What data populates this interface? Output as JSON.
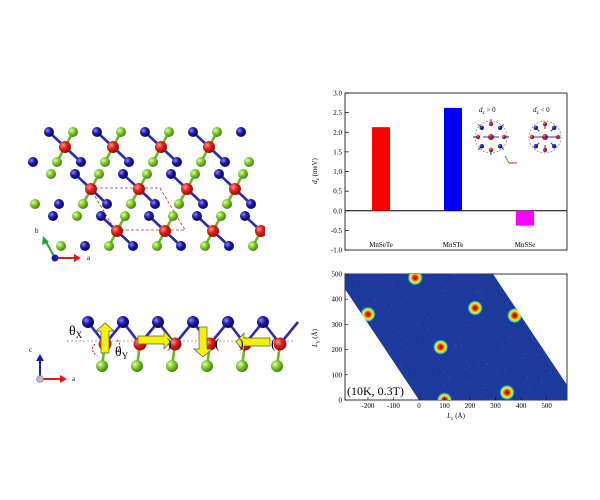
{
  "colors": {
    "mn": "#e0201c",
    "s": "#1c1ca8",
    "te": "#7ecc2a",
    "bar_mnsete": "#ff0000",
    "bar_mnste": "#0000ff",
    "bar_mnsse": "#ff00ff",
    "arrow_yellow": "#f4f200",
    "map_bg": "#1b3a9c",
    "axis_a": "#e01818",
    "axis_b": "#2aa22a",
    "axis_c": "#1c1ca8"
  },
  "top_view": {
    "axis_a_label": "a",
    "axis_b_label": "b"
  },
  "side_view": {
    "axis_a_label": "a",
    "axis_c_label": "c",
    "theta_x": "θ",
    "theta_x_sub": "X",
    "theta_y": "θ",
    "theta_y_sub": "Y"
  },
  "chart_data": [
    {
      "type": "bar",
      "categories": [
        "MnSeTe",
        "MnSTe",
        "MnSSe"
      ],
      "values": [
        2.13,
        2.62,
        -0.38
      ],
      "ylabel": "d",
      "ylabel_sub": "z",
      "ylabel_unit": "(meV)",
      "ylim": [
        -1.0,
        3.0
      ],
      "yticks": [
        "-1.0",
        "-0.5",
        "0.0",
        "0.5",
        "1.0",
        "1.5",
        "2.0",
        "2.5",
        "3.0"
      ],
      "annotations": [
        {
          "text": "d",
          "sub": "z",
          "rel": " > 0"
        },
        {
          "text": "d",
          "sub": "z",
          "rel": " < 0"
        }
      ]
    },
    {
      "type": "heatmap",
      "title": "",
      "xlabel": "L",
      "xlabel_sub": "x",
      "xlabel_unit": "(Å)",
      "ylabel": "L",
      "ylabel_sub": "y",
      "ylabel_unit": "(Å)",
      "xticks": [
        "-200",
        "-100",
        "0",
        "100",
        "200",
        "300",
        "400",
        "500"
      ],
      "yticks": [
        "0",
        "100",
        "200",
        "300",
        "400",
        "500"
      ],
      "xlim": [
        -290,
        580
      ],
      "ylim": [
        0,
        500
      ],
      "annotation": "(10K, 0.3T)",
      "skyrmions": [
        {
          "x": -15,
          "y": 485
        },
        {
          "x": 220,
          "y": 365
        },
        {
          "x": -200,
          "y": 340
        },
        {
          "x": 375,
          "y": 335
        },
        {
          "x": 85,
          "y": 210
        },
        {
          "x": 345,
          "y": 30
        },
        {
          "x": 100,
          "y": 0
        }
      ]
    }
  ]
}
